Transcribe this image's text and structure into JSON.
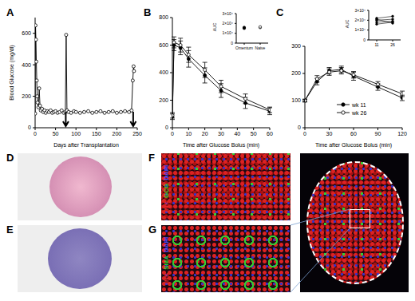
{
  "chart_data": [
    {
      "type": "line",
      "title": "A",
      "x_label": "Days after Transplantation",
      "y_label": "Blood Glucose (mg/dl)",
      "x": [
        0,
        1,
        2,
        3,
        4,
        5,
        6,
        8,
        10,
        12,
        14,
        17,
        20,
        23,
        26,
        30,
        34,
        38,
        42,
        46,
        50,
        55,
        60,
        65,
        70,
        74,
        76,
        78,
        82,
        88,
        95,
        100,
        110,
        120,
        130,
        140,
        150,
        160,
        170,
        180,
        190,
        200,
        210,
        220,
        230,
        236,
        239,
        241,
        242
      ],
      "series": [
        {
          "color": "#000000",
          "marker": "open_circle",
          "values": [
            90,
            650,
            560,
            420,
            300,
            200,
            160,
            130,
            250,
            140,
            110,
            120,
            100,
            110,
            95,
            105,
            100,
            110,
            95,
            100,
            105,
            95,
            100,
            110,
            95,
            100,
            590,
            110,
            100,
            95,
            105,
            100,
            95,
            100,
            105,
            95,
            100,
            105,
            95,
            100,
            105,
            95,
            100,
            105,
            100,
            110,
            300,
            390,
            360
          ]
        }
      ],
      "xlim": [
        0,
        250
      ],
      "xticks": [
        0,
        50,
        100,
        150,
        200,
        250
      ],
      "ylim": [
        0,
        700
      ],
      "yticks": [
        0,
        200,
        400,
        600
      ],
      "arrows": [
        75,
        240
      ]
    },
    {
      "type": "line",
      "title": "B",
      "x_label": "Time after Glucose Bolus (min)",
      "y_label": "",
      "x": [
        0,
        1,
        5,
        10,
        20,
        30,
        45,
        60
      ],
      "series": [
        {
          "color": "#000000",
          "marker": "filled_circle",
          "values": [
            80,
            600,
            580,
            500,
            380,
            270,
            180,
            120
          ],
          "errors": [
            20,
            40,
            50,
            60,
            55,
            50,
            40,
            25
          ]
        },
        {
          "color": "#000000",
          "marker": "open_circle",
          "values": [
            90,
            620,
            600,
            530,
            420,
            300,
            210,
            130
          ],
          "errors": [
            20,
            40,
            50,
            55,
            55,
            45,
            35,
            20
          ]
        }
      ],
      "xlim": [
        0,
        60
      ],
      "xticks": [
        0,
        10,
        20,
        30,
        40,
        50,
        60
      ],
      "ylim": [
        0,
        800
      ],
      "yticks": [
        0,
        200,
        400,
        600,
        800
      ],
      "inset": {
        "type": "strip",
        "y_label": "AUC",
        "categories": [
          "Omentum",
          "Naive"
        ],
        "series": [
          {
            "color": "#000000",
            "marker": "filled_circle",
            "values": [
              15000,
              15500,
              16000
            ]
          },
          {
            "color": "#000000",
            "marker": "open_circle",
            "values": [
              15800,
              16200,
              16500
            ]
          }
        ],
        "ylim": [
          0,
          30000
        ],
        "yticks": [
          0,
          {
            "value": 10000,
            "label": "1×10⁴"
          },
          {
            "value": 20000,
            "label": "2×10⁴"
          },
          {
            "value": 30000,
            "label": "3×10⁴"
          }
        ]
      }
    },
    {
      "type": "line",
      "title": "C",
      "x_label": "Time after Glucose Bolus (min)",
      "y_label": "",
      "x": [
        0,
        15,
        30,
        45,
        60,
        90,
        120
      ],
      "series": [
        {
          "name": "wk 11",
          "color": "#000000",
          "marker": "filled_circle",
          "values": [
            100,
            170,
            210,
            215,
            190,
            150,
            110
          ],
          "errors": [
            5,
            12,
            12,
            12,
            15,
            12,
            10
          ]
        },
        {
          "name": "wk 26",
          "color": "#000000",
          "marker": "open_circle",
          "values": [
            100,
            180,
            205,
            210,
            195,
            160,
            125
          ],
          "errors": [
            5,
            12,
            12,
            12,
            12,
            10,
            10
          ]
        }
      ],
      "xlim": [
        0,
        120
      ],
      "xticks": [
        0,
        30,
        60,
        90,
        120
      ],
      "ylim": [
        0,
        300
      ],
      "yticks": [
        0,
        100,
        200,
        300
      ],
      "legend": "bottom",
      "inset": {
        "type": "line",
        "y_label": "AUC",
        "categories": [
          "11",
          "26"
        ],
        "series": [
          {
            "color": "#000000",
            "marker": "filled_circle",
            "values": [
              22000,
              24000
            ]
          },
          {
            "color": "#000000",
            "marker": "filled_circle",
            "values": [
              20000,
              21000
            ]
          },
          {
            "color": "#000000",
            "marker": "filled_circle",
            "values": [
              18000,
              19000
            ]
          },
          {
            "color": "#000000",
            "marker": "filled_circle",
            "values": [
              21000,
              17000
            ]
          },
          {
            "color": "#000000",
            "marker": "filled_circle",
            "values": [
              16000,
              18000
            ]
          }
        ],
        "ylim": [
          0,
          30000
        ],
        "yticks": [
          0,
          {
            "value": 10000,
            "label": "1×10⁴"
          },
          {
            "value": 20000,
            "label": "2×10⁴"
          },
          {
            "value": 30000,
            "label": "3×10⁴"
          }
        ]
      }
    }
  ],
  "images": [
    {
      "panel": "D"
    },
    {
      "panel": "E"
    },
    {
      "panel": "F",
      "channels": [
        {
          "label": "INS",
          "color": "#e8262a"
        },
        {
          "label": "GCG",
          "color": "#2bd12b"
        },
        {
          "label": "DAPI",
          "color": "#4a4aff"
        }
      ]
    },
    {
      "panel": "G",
      "channels": [
        {
          "label": "INS",
          "color": "#e8262a"
        },
        {
          "label": "SMA",
          "color": "#2bd12b"
        },
        {
          "label": "DAPI",
          "color": "#4a4aff"
        }
      ]
    }
  ]
}
